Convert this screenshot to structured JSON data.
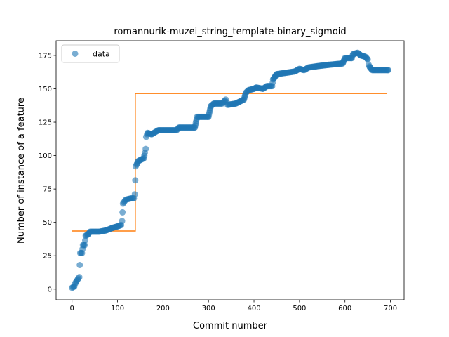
{
  "chart_data": {
    "type": "scatter",
    "title": "romannurik-muzei_string_template-binary_sigmoid",
    "xlabel": "Commit number",
    "ylabel": "Number of instance of a feature",
    "xlim": [
      -35,
      730
    ],
    "ylim": [
      -8,
      186
    ],
    "xticks": [
      0,
      100,
      200,
      300,
      400,
      500,
      600,
      700
    ],
    "yticks": [
      0,
      25,
      50,
      75,
      100,
      125,
      150,
      175
    ],
    "grid": false,
    "legend": {
      "position": "top-left",
      "entries": [
        "data"
      ]
    },
    "colors": {
      "data": "#1f77b4",
      "fit": "#ff7f0e"
    },
    "series": [
      {
        "name": "data",
        "style": "markers",
        "anchors": [
          [
            0,
            1
          ],
          [
            5,
            2
          ],
          [
            8,
            5
          ],
          [
            12,
            7
          ],
          [
            16,
            9
          ],
          [
            18,
            27
          ],
          [
            22,
            27
          ],
          [
            24,
            33
          ],
          [
            28,
            33
          ],
          [
            30,
            40
          ],
          [
            35,
            41
          ],
          [
            40,
            43
          ],
          [
            60,
            43
          ],
          [
            75,
            44
          ],
          [
            90,
            46
          ],
          [
            100,
            47
          ],
          [
            108,
            48
          ],
          [
            110,
            51
          ],
          [
            112,
            64
          ],
          [
            118,
            67
          ],
          [
            130,
            68
          ],
          [
            136,
            68
          ],
          [
            138,
            71
          ],
          [
            140,
            92
          ],
          [
            143,
            94
          ],
          [
            146,
            96
          ],
          [
            152,
            97
          ],
          [
            158,
            98
          ],
          [
            160,
            102
          ],
          [
            162,
            105
          ],
          [
            163,
            114
          ],
          [
            166,
            117
          ],
          [
            175,
            116
          ],
          [
            185,
            118
          ],
          [
            190,
            119
          ],
          [
            230,
            119
          ],
          [
            235,
            121
          ],
          [
            270,
            121
          ],
          [
            275,
            129
          ],
          [
            300,
            129
          ],
          [
            305,
            137
          ],
          [
            312,
            139
          ],
          [
            330,
            139
          ],
          [
            338,
            142
          ],
          [
            342,
            138
          ],
          [
            360,
            139
          ],
          [
            372,
            141
          ],
          [
            378,
            142
          ],
          [
            382,
            147
          ],
          [
            388,
            149
          ],
          [
            400,
            150
          ],
          [
            405,
            151
          ],
          [
            420,
            150
          ],
          [
            428,
            152
          ],
          [
            440,
            152
          ],
          [
            442,
            157
          ],
          [
            450,
            161
          ],
          [
            470,
            162
          ],
          [
            490,
            163
          ],
          [
            500,
            165
          ],
          [
            510,
            164
          ],
          [
            520,
            166
          ],
          [
            540,
            167
          ],
          [
            565,
            168
          ],
          [
            595,
            169
          ],
          [
            600,
            173
          ],
          [
            615,
            173
          ],
          [
            618,
            176
          ],
          [
            628,
            177
          ],
          [
            635,
            175
          ],
          [
            645,
            174
          ],
          [
            650,
            172
          ],
          [
            652,
            168
          ],
          [
            655,
            166
          ],
          [
            660,
            164
          ],
          [
            695,
            164
          ]
        ]
      },
      {
        "name": "fit",
        "style": "step-line",
        "x": [
          0,
          139,
          139,
          693
        ],
        "y": [
          43.5,
          43.5,
          146.5,
          146.5
        ]
      }
    ]
  }
}
